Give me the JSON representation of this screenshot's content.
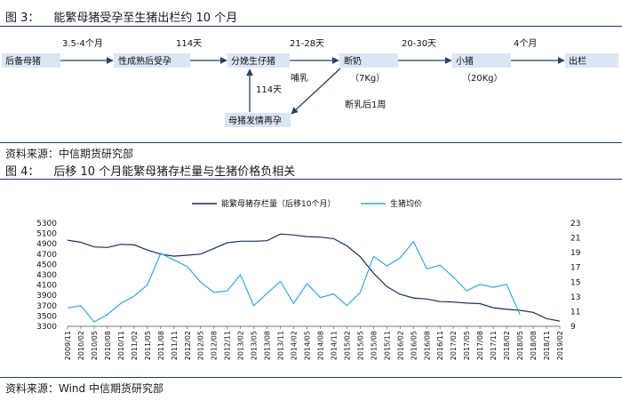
{
  "figure3": {
    "title_num": "图 3：",
    "title": "能繁母猪受孕至生猪出栏约 10 个月",
    "stages": {
      "sow": "后备母猪",
      "mature": "性成熟后受孕",
      "farrow": "分娩生仔猪",
      "wean": "断奶",
      "wean_weight": "（7Kg）",
      "piglet": "小猪",
      "piglet_weight": "（20Kg）",
      "market": "出栏",
      "estrus": "母猪发情再孕"
    },
    "durations": {
      "d1": "3.5-4个月",
      "d2": "114天",
      "d3": "21-28天",
      "d4": "20-30天",
      "d5": "4个月",
      "d_gest": "114天",
      "nursing": "哺乳",
      "after_wean": "断乳后1周"
    },
    "source": "资料来源：中信期货研究部"
  },
  "figure4": {
    "title_num": "图 4：",
    "title": "后移 10 个月能繁母猪存栏量与生猪价格负相关",
    "source": "资料来源：Wind 中信期货研究部"
  },
  "colors": {
    "sow_series": "#1f2d5a",
    "price_series": "#36a6e0",
    "box": "#dbe6f4",
    "rule": "#1f3a68"
  },
  "chart_data": {
    "type": "line",
    "legend_position": "top",
    "grid": false,
    "x_ticks": [
      "2009/11",
      "2010/02",
      "2010/05",
      "2010/08",
      "2010/11",
      "2011/02",
      "2011/05",
      "2011/08",
      "2011/11",
      "2012/02",
      "2012/05",
      "2012/08",
      "2012/11",
      "2013/02",
      "2013/05",
      "2013/08",
      "2013/11",
      "2014/02",
      "2014/05",
      "2014/08",
      "2014/11",
      "2015/02",
      "2015/05",
      "2015/08",
      "2015/11",
      "2016/02",
      "2016/05",
      "2016/08",
      "2016/11",
      "2017/02",
      "2017/05",
      "2017/08",
      "2017/11",
      "2018/02",
      "2018/05",
      "2018/08",
      "2018/11",
      "2019/02"
    ],
    "y_left": {
      "range": [
        3300,
        5300
      ],
      "ticks": [
        3300,
        3500,
        3700,
        3900,
        4100,
        4300,
        4500,
        4700,
        4900,
        5100,
        5300
      ]
    },
    "y_right": {
      "range": [
        9,
        23
      ],
      "ticks": [
        9,
        11,
        13,
        15,
        17,
        19,
        21,
        23
      ]
    },
    "series": [
      {
        "name": "能繁母猪存栏量（后移10个月）",
        "axis": "left",
        "values": [
          4970,
          4930,
          4840,
          4830,
          4890,
          4880,
          4780,
          4700,
          4660,
          4680,
          4700,
          4810,
          4920,
          4950,
          4950,
          4960,
          5090,
          5070,
          5040,
          5030,
          5000,
          4860,
          4650,
          4330,
          4070,
          3920,
          3850,
          3830,
          3780,
          3770,
          3750,
          3740,
          3660,
          3630,
          3610,
          3570,
          3450,
          3400
        ]
      },
      {
        "name": "生猪均价",
        "axis": "right",
        "values": [
          11.5,
          11.8,
          9.6,
          10.6,
          12.1,
          13.1,
          14.6,
          18.9,
          18.0,
          17.1,
          15.0,
          13.6,
          13.8,
          16.0,
          11.8,
          13.5,
          15.1,
          12.1,
          14.8,
          12.9,
          13.4,
          11.8,
          13.6,
          18.5,
          17.2,
          18.3,
          20.5,
          16.8,
          17.3,
          15.7,
          13.8,
          14.7,
          14.3,
          14.7,
          10.6,
          null,
          null,
          null
        ]
      }
    ]
  }
}
